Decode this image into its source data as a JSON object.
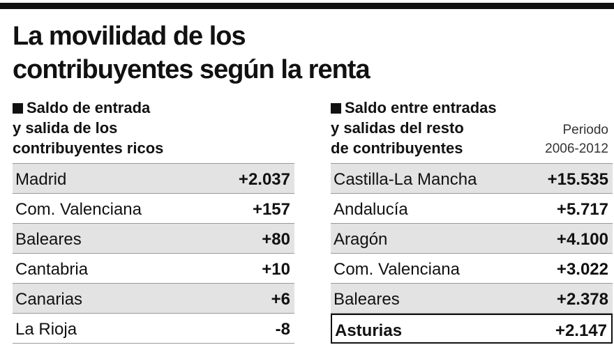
{
  "header": {
    "title": [
      "La movilidad de los",
      "contribuyentes según la renta"
    ]
  },
  "left": {
    "heading": [
      "Saldo de entrada",
      "y salida de los",
      "contribuyentes ricos"
    ],
    "rows": [
      [
        "Madrid",
        "+2.037"
      ],
      [
        "Com. Valenciana",
        "+157"
      ],
      [
        "Baleares",
        "+80"
      ],
      [
        "Cantabria",
        "+10"
      ],
      [
        "Canarias",
        "+6"
      ],
      [
        "La Rioja",
        "-8"
      ]
    ]
  },
  "right": {
    "heading": [
      "Saldo entre entradas",
      "y salidas del resto",
      "de contribuyentes"
    ],
    "note": [
      "Periodo",
      "2006-2012"
    ],
    "rows": [
      [
        "Castilla-La Mancha",
        "+15.535"
      ],
      [
        "Andalucía",
        "+5.717"
      ],
      [
        "Aragón",
        "+4.100"
      ],
      [
        "Com. Valenciana",
        "+3.022"
      ],
      [
        "Baleares",
        "+2.378"
      ],
      [
        "Asturias",
        "+2.147"
      ]
    ],
    "highlight_row": 5
  }
}
